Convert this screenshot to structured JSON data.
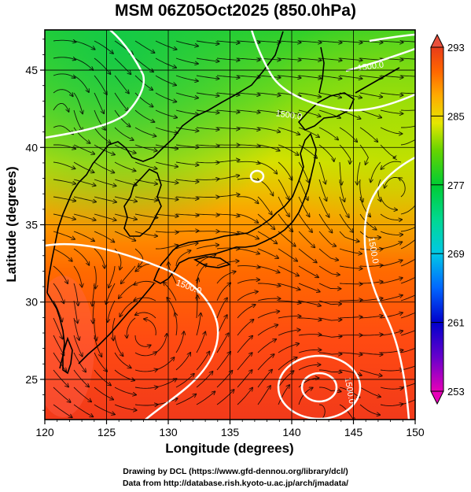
{
  "title": "MSM 06Z05Oct2025 (850.0hPa)",
  "axes": {
    "xlabel": "Longitude (degrees)",
    "ylabel": "Latitude  (degrees)",
    "x_ticks": [
      "120",
      "125",
      "130",
      "135",
      "140",
      "145",
      "150"
    ],
    "y_ticks": [
      "25",
      "30",
      "35",
      "40",
      "45"
    ],
    "xlim": [
      120,
      150
    ],
    "ylim": [
      22.4,
      47.6
    ]
  },
  "colorbar": {
    "labels": [
      "293",
      "285",
      "277",
      "269",
      "261",
      "253"
    ],
    "range": [
      253,
      293
    ],
    "colors": [
      "#e60073",
      "#ff00ff",
      "#6600cc",
      "#0000cc",
      "#0066ff",
      "#00ccff",
      "#00e6b0",
      "#00cc33",
      "#33cc00",
      "#99e600",
      "#e6e600",
      "#ffcc00",
      "#ff9900",
      "#ff6600",
      "#ff3300",
      "#e62e1e"
    ]
  },
  "contour_labels": [
    "1500.0",
    "1500.0",
    "1500.0",
    "1500.0",
    "1500.0"
  ],
  "credits": {
    "line1": "Drawing by DCL (https://www.gfd-dennou.org/library/dcl/)",
    "line2": "Data from http://database.rish.kyoto-u.ac.jp/arch/jmadata/"
  }
}
